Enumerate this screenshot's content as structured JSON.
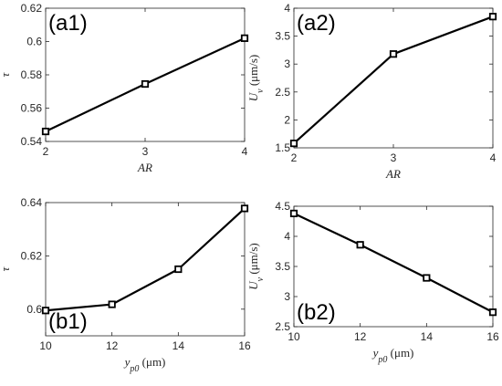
{
  "figure": {
    "line_color": "#000000",
    "axis_color": "#262626",
    "background": "#ffffff"
  },
  "chart_data": [
    {
      "type": "line",
      "panel_label": "(a1)",
      "x": [
        2,
        3,
        4
      ],
      "y": [
        0.546,
        0.5745,
        0.602
      ],
      "xlim": [
        2,
        4
      ],
      "ylim": [
        0.54,
        0.62
      ],
      "xticks": [
        "2",
        "3",
        "4"
      ],
      "yticks": [
        "0.54",
        "0.56",
        "0.58",
        "0.6",
        "0.62"
      ],
      "xlabel": {
        "sym": "AR",
        "sub": "",
        "unit": ""
      },
      "ylabel": {
        "sym": "τ",
        "sub": "",
        "unit": ""
      },
      "marker": "square",
      "grid": false
    },
    {
      "type": "line",
      "panel_label": "(a2)",
      "x": [
        2,
        3,
        4
      ],
      "y": [
        1.58,
        3.18,
        3.85
      ],
      "xlim": [
        2,
        4
      ],
      "ylim": [
        1.5,
        4
      ],
      "xticks": [
        "2",
        "3",
        "4"
      ],
      "yticks": [
        "1.5",
        "2",
        "2.5",
        "3",
        "3.5",
        "4"
      ],
      "xlabel": {
        "sym": "AR",
        "sub": "",
        "unit": ""
      },
      "ylabel": {
        "sym": "U",
        "sub": "v",
        "unit": "(μm/s)"
      },
      "marker": "square",
      "grid": false
    },
    {
      "type": "line",
      "panel_label": "(b1)",
      "x": [
        10,
        12,
        14,
        16
      ],
      "y": [
        0.5995,
        0.6018,
        0.615,
        0.6378
      ],
      "xlim": [
        10,
        16
      ],
      "ylim": [
        0.59,
        0.64
      ],
      "xticks": [
        "10",
        "12",
        "14",
        "16"
      ],
      "yticks": [
        "0.6",
        "0.62",
        "0.64"
      ],
      "xlabel": {
        "sym": "y",
        "sub": "p0",
        "unit": "(μm)"
      },
      "ylabel": {
        "sym": "τ",
        "sub": "",
        "unit": ""
      },
      "marker": "square",
      "grid": false
    },
    {
      "type": "line",
      "panel_label": "(b2)",
      "x": [
        10,
        12,
        14,
        16
      ],
      "y": [
        4.38,
        3.86,
        3.31,
        2.74
      ],
      "xlim": [
        10,
        16
      ],
      "ylim": [
        2.5,
        4.5
      ],
      "xticks": [
        "10",
        "12",
        "14",
        "16"
      ],
      "yticks": [
        "2.5",
        "3",
        "3.5",
        "4",
        "4.5"
      ],
      "xlabel": {
        "sym": "y",
        "sub": "p0",
        "unit": "(μm)"
      },
      "ylabel": {
        "sym": "U",
        "sub": "v",
        "unit": "(μm/s)"
      },
      "marker": "square",
      "grid": false
    }
  ]
}
